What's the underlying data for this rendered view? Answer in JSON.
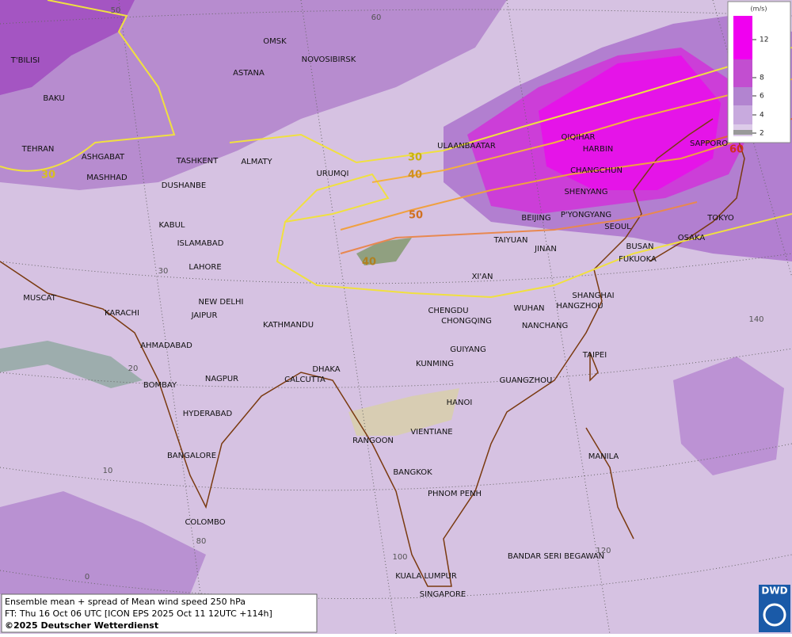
{
  "legend": {
    "unit": "(m/s)",
    "ticks": [
      12,
      8,
      6,
      4,
      2
    ]
  },
  "cities": [
    "OMSK",
    "NOVOSIBIRSK",
    "ASTANA",
    "T'BILISI",
    "BAKU",
    "TEHRAN",
    "ASHGABAT",
    "MASHHAD",
    "TASHKENT",
    "ALMATY",
    "DUSHANBE",
    "URUMQI",
    "ULAANBAATAR",
    "QIQIHAR",
    "HARBIN",
    "CHANGCHUN",
    "SHENYANG",
    "SAPPORO",
    "P'YONGYANG",
    "BEIJING",
    "SEOUL",
    "TOKYO",
    "OSAKA",
    "BUSAN",
    "FUKUOKA",
    "TAIYUAN",
    "JINAN",
    "XI'AN",
    "KABUL",
    "ISLAMABAD",
    "LAHORE",
    "SHANGHAI",
    "HANGZHOU",
    "WUHAN",
    "CHENGDU",
    "CHONGQING",
    "NANCHANG",
    "NEW DELHI",
    "JAIPUR",
    "KARACHI",
    "MUSCAT",
    "KATHMANDU",
    "AHMADABAD",
    "GUIYANG",
    "TAIPEI",
    "KUNMING",
    "DHAKA",
    "CALCUTTA",
    "BOMBAY",
    "NAGPUR",
    "GUANGZHOU",
    "HANOI",
    "HYDERABAD",
    "RANGOON",
    "VIENTIANE",
    "MANILA",
    "BANGALORE",
    "BANGKOK",
    "PHNOM PENH",
    "COLOMBO",
    "BANDAR SERI BEGAWAN",
    "KUALA LUMPUR",
    "SINGAPORE"
  ],
  "graticule_labels": [
    50,
    60,
    30,
    20,
    10,
    0,
    80,
    100,
    120,
    140
  ],
  "contour_labels": [
    30,
    30,
    40,
    50,
    40,
    60
  ],
  "footer": {
    "line1": "Ensemble mean + spread of Mean wind speed 250 hPa",
    "line2": "FT: Thu 16 Oct 06 UTC [ICON EPS 2025 Oct 11 12UTC +114h]",
    "copyright": "©2025 Deutscher Wetterdienst"
  },
  "logo": "DWD"
}
